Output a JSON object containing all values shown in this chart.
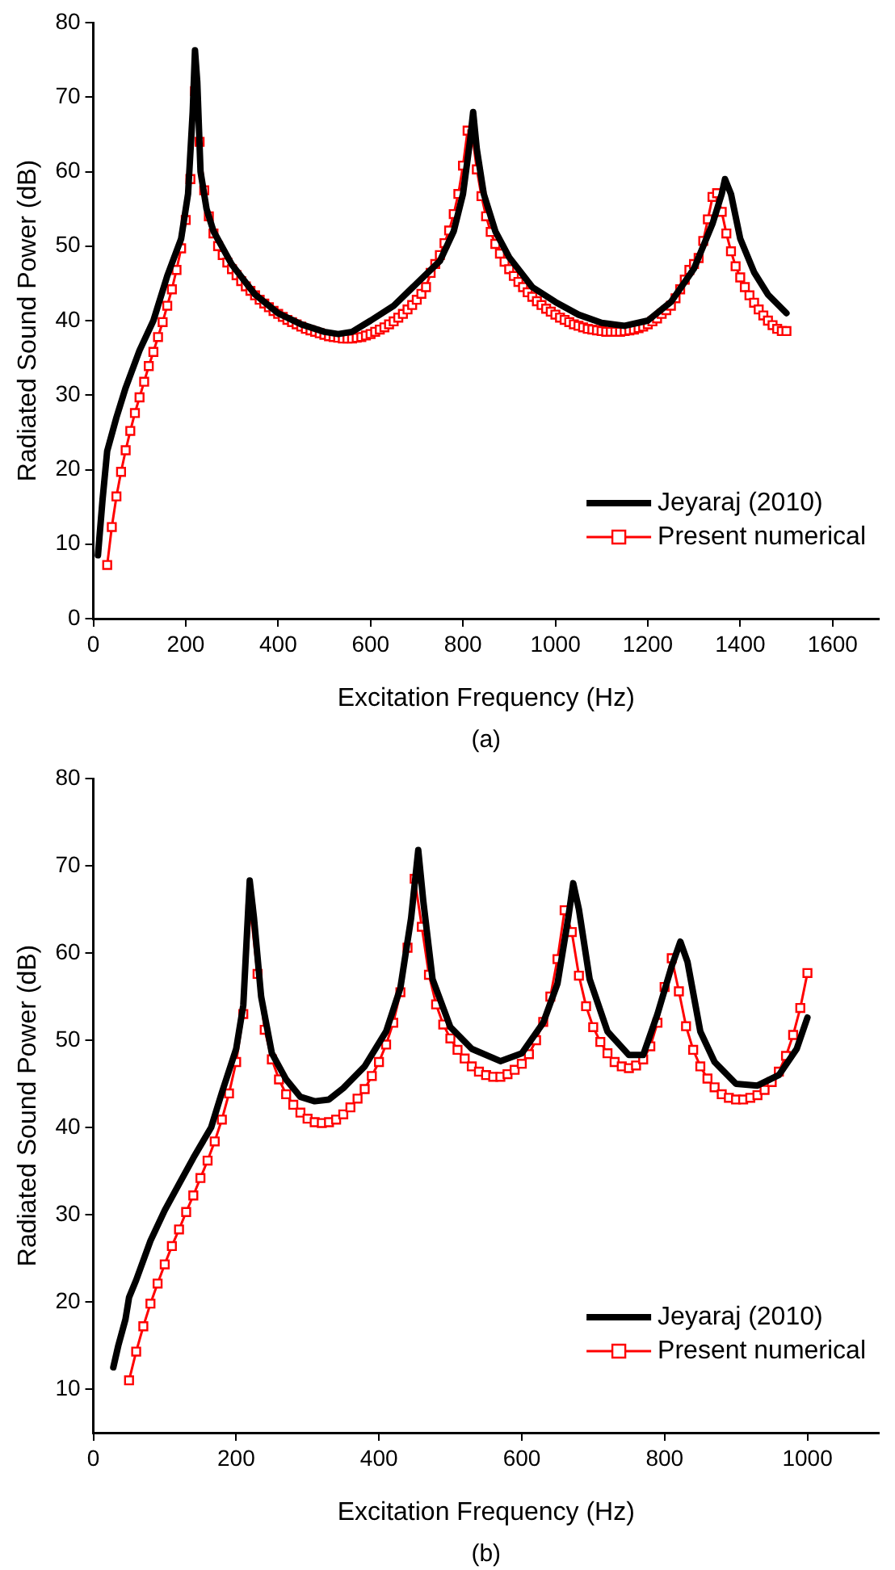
{
  "chart_data": [
    {
      "type": "line",
      "xlabel": "Excitation Frequency (Hz)",
      "ylabel": "Radiated Sound Power (dB)",
      "annotations": [
        "(a)"
      ],
      "xlim": [
        0,
        1700
      ],
      "xticks": [
        0,
        200,
        400,
        600,
        800,
        1000,
        1200,
        1400,
        1600
      ],
      "ylim": [
        0,
        80
      ],
      "yticks": [
        0,
        10,
        20,
        30,
        40,
        50,
        60,
        70,
        80
      ],
      "legend": "bottom right",
      "series": [
        {
          "name": "Jeyaraj (2010)",
          "color": "#000000",
          "marker": "none",
          "x": [
            10,
            20,
            30,
            50,
            70,
            100,
            130,
            160,
            190,
            205,
            215,
            220,
            225,
            232,
            245,
            260,
            300,
            350,
            400,
            450,
            500,
            530,
            560,
            600,
            650,
            700,
            750,
            780,
            800,
            815,
            822,
            830,
            845,
            870,
            900,
            950,
            1000,
            1050,
            1100,
            1150,
            1200,
            1250,
            1300,
            1340,
            1360,
            1367,
            1380,
            1400,
            1430,
            1460,
            1500
          ],
          "values": [
            8.5,
            16,
            22.5,
            27,
            31,
            36,
            40,
            46,
            51,
            57,
            68,
            76.3,
            72,
            60,
            55,
            52,
            47.5,
            43.5,
            41,
            39.5,
            38.5,
            38.2,
            38.5,
            40,
            42,
            45,
            48,
            52,
            57,
            64,
            68,
            63,
            57,
            52,
            48.5,
            44.5,
            42.5,
            40.8,
            39.7,
            39.3,
            40,
            42.5,
            47,
            53,
            57,
            59,
            57,
            51,
            46.5,
            43.5,
            41
          ]
        },
        {
          "name": "Present numerical",
          "color": "#ff0000",
          "marker": "square",
          "x": [
            30,
            40,
            50,
            60,
            70,
            80,
            90,
            100,
            110,
            120,
            130,
            140,
            150,
            160,
            170,
            180,
            190,
            200,
            210,
            220,
            230,
            240,
            250,
            260,
            270,
            280,
            290,
            300,
            310,
            320,
            330,
            340,
            350,
            360,
            370,
            380,
            390,
            400,
            410,
            420,
            430,
            440,
            450,
            460,
            470,
            480,
            490,
            500,
            510,
            520,
            530,
            540,
            550,
            560,
            570,
            580,
            590,
            600,
            610,
            620,
            630,
            640,
            650,
            660,
            670,
            680,
            690,
            700,
            710,
            720,
            730,
            740,
            750,
            760,
            770,
            780,
            790,
            800,
            810,
            820,
            830,
            840,
            850,
            860,
            870,
            880,
            890,
            900,
            910,
            920,
            930,
            940,
            950,
            960,
            970,
            980,
            990,
            1000,
            1010,
            1020,
            1030,
            1040,
            1050,
            1060,
            1070,
            1080,
            1090,
            1100,
            1110,
            1120,
            1130,
            1140,
            1150,
            1160,
            1170,
            1180,
            1190,
            1200,
            1210,
            1220,
            1230,
            1240,
            1250,
            1260,
            1270,
            1280,
            1290,
            1300,
            1310,
            1320,
            1330,
            1340,
            1350,
            1360,
            1370,
            1380,
            1390,
            1400,
            1410,
            1420,
            1430,
            1440,
            1450,
            1460,
            1470,
            1480,
            1490,
            1500
          ],
          "values": [
            7.2,
            12.3,
            16.4,
            19.7,
            22.6,
            25.2,
            27.6,
            29.7,
            31.8,
            33.9,
            35.8,
            37.8,
            39.8,
            42,
            44.2,
            46.8,
            49.7,
            53.5,
            59,
            70.8,
            64,
            57.5,
            54,
            51.7,
            50,
            48.8,
            47.8,
            46.9,
            46.1,
            45.3,
            44.6,
            44,
            43.4,
            42.8,
            42.3,
            41.8,
            41.3,
            40.9,
            40.5,
            40.1,
            39.8,
            39.5,
            39.2,
            38.9,
            38.7,
            38.5,
            38.3,
            38.1,
            37.9,
            37.8,
            37.7,
            37.6,
            37.6,
            37.6,
            37.7,
            37.8,
            38,
            38.2,
            38.5,
            38.8,
            39.1,
            39.5,
            39.9,
            40.4,
            40.9,
            41.5,
            42.1,
            42.8,
            43.6,
            44.5,
            46.4,
            47.6,
            48.8,
            50.4,
            52.1,
            54.3,
            57,
            60.8,
            65.5,
            65,
            60.3,
            56.7,
            54,
            51.9,
            50.3,
            49,
            47.9,
            46.9,
            46,
            45.2,
            44.5,
            43.8,
            43.2,
            42.6,
            42.1,
            41.6,
            41.2,
            40.8,
            40.4,
            40.1,
            39.8,
            39.5,
            39.3,
            39.1,
            38.9,
            38.8,
            38.7,
            38.6,
            38.5,
            38.5,
            38.5,
            38.5,
            38.6,
            38.7,
            38.8,
            39,
            39.2,
            39.5,
            39.9,
            40.3,
            40.9,
            41.4,
            42,
            43,
            44.2,
            45.5,
            46.8,
            47.6,
            48.4,
            50.7,
            53.6,
            56.6,
            57.1,
            54.6,
            51.7,
            49.3,
            47.3,
            45.8,
            44.5,
            43.4,
            42.4,
            41.5,
            40.7,
            40,
            39.4,
            38.9,
            38.6,
            38.6
          ]
        }
      ]
    },
    {
      "type": "line",
      "xlabel": "Excitation Frequency (Hz)",
      "ylabel": "Radiated Sound Power (dB)",
      "annotations": [
        "(b)"
      ],
      "xlim": [
        0,
        1100
      ],
      "xticks": [
        0,
        200,
        400,
        600,
        800,
        1000
      ],
      "ylim": [
        5,
        80
      ],
      "yticks": [
        10,
        20,
        30,
        40,
        50,
        60,
        70,
        80
      ],
      "legend": "bottom right",
      "series": [
        {
          "name": "Jeyaraj (2010)",
          "color": "#000000",
          "marker": "none",
          "x": [
            28,
            35,
            45,
            50,
            60,
            80,
            100,
            120,
            140,
            165,
            180,
            200,
            210,
            215,
            219,
            225,
            235,
            250,
            270,
            290,
            310,
            330,
            350,
            380,
            410,
            430,
            445,
            455,
            462,
            475,
            500,
            530,
            570,
            600,
            630,
            650,
            665,
            672,
            680,
            695,
            720,
            750,
            770,
            790,
            810,
            822,
            832,
            850,
            870,
            900,
            930,
            960,
            985,
            1000
          ],
          "values": [
            12.5,
            15,
            18,
            20.5,
            22.5,
            27,
            30.5,
            33.5,
            36.5,
            40,
            44,
            49,
            54,
            62,
            68.3,
            64,
            55,
            48.5,
            45.5,
            43.5,
            43,
            43.2,
            44.5,
            47,
            51,
            56,
            64,
            71.8,
            66,
            57,
            51.5,
            49,
            47.6,
            48.5,
            52,
            56.5,
            64,
            68,
            65,
            57,
            51,
            48.3,
            48.3,
            53,
            58.5,
            61.3,
            59,
            51,
            47.5,
            45,
            44.8,
            46,
            49,
            52.6
          ]
        },
        {
          "name": "Present numerical",
          "color": "#ff0000",
          "marker": "square",
          "x": [
            50,
            60,
            70,
            80,
            90,
            100,
            110,
            120,
            130,
            140,
            150,
            160,
            170,
            180,
            190,
            200,
            210,
            220,
            230,
            240,
            250,
            260,
            270,
            280,
            290,
            300,
            310,
            320,
            330,
            340,
            350,
            360,
            370,
            380,
            390,
            400,
            410,
            420,
            430,
            440,
            450,
            460,
            470,
            480,
            490,
            500,
            510,
            520,
            530,
            540,
            550,
            560,
            570,
            580,
            590,
            600,
            610,
            620,
            630,
            640,
            650,
            660,
            670,
            680,
            690,
            700,
            710,
            720,
            730,
            740,
            750,
            760,
            770,
            780,
            790,
            800,
            810,
            820,
            830,
            840,
            850,
            860,
            870,
            880,
            890,
            900,
            910,
            920,
            930,
            940,
            950,
            960,
            970,
            980,
            990,
            1000
          ],
          "values": [
            11,
            14.3,
            17.2,
            19.8,
            22.1,
            24.3,
            26.4,
            28.3,
            30.3,
            32.2,
            34.2,
            36.2,
            38.4,
            40.9,
            43.9,
            47.5,
            53,
            65,
            57.6,
            51.2,
            47.8,
            45.5,
            43.8,
            42.6,
            41.7,
            41,
            40.6,
            40.5,
            40.6,
            40.9,
            41.5,
            42.3,
            43.3,
            44.4,
            45.9,
            47.5,
            49.5,
            52,
            55.5,
            60.6,
            68.5,
            63,
            57.5,
            54.1,
            51.8,
            50.2,
            48.9,
            47.9,
            47,
            46.4,
            46,
            45.8,
            45.8,
            46.1,
            46.6,
            47.3,
            48.4,
            50,
            52.1,
            55,
            59.3,
            64.9,
            62.4,
            57.4,
            53.9,
            51.5,
            49.8,
            48.5,
            47.5,
            47,
            46.8,
            47.1,
            47.8,
            49.3,
            52,
            56.1,
            59.4,
            55.6,
            51.6,
            48.9,
            47,
            45.6,
            44.6,
            43.8,
            43.4,
            43.2,
            43.2,
            43.4,
            43.7,
            44.3,
            45.2,
            46.4,
            48.2,
            50.6,
            53.7,
            57.7
          ]
        }
      ]
    }
  ]
}
